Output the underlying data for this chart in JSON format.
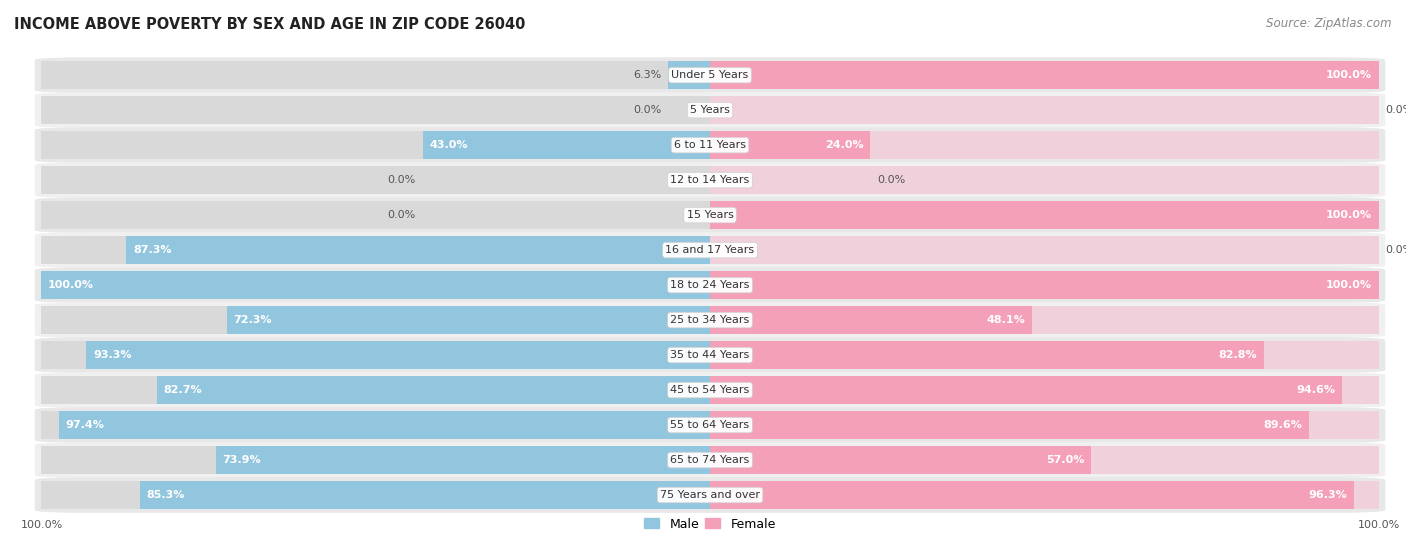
{
  "title": "INCOME ABOVE POVERTY BY SEX AND AGE IN ZIP CODE 26040",
  "source": "Source: ZipAtlas.com",
  "categories": [
    "Under 5 Years",
    "5 Years",
    "6 to 11 Years",
    "12 to 14 Years",
    "15 Years",
    "16 and 17 Years",
    "18 to 24 Years",
    "25 to 34 Years",
    "35 to 44 Years",
    "45 to 54 Years",
    "55 to 64 Years",
    "65 to 74 Years",
    "75 Years and over"
  ],
  "male_values": [
    6.3,
    0.0,
    43.0,
    0.0,
    0.0,
    87.3,
    100.0,
    72.3,
    93.3,
    82.7,
    97.4,
    73.9,
    85.3
  ],
  "female_values": [
    100.0,
    0.0,
    24.0,
    0.0,
    100.0,
    0.0,
    100.0,
    48.1,
    82.8,
    94.6,
    89.6,
    57.0,
    96.3
  ],
  "male_color": "#92C5DE",
  "female_color": "#F4A0B8",
  "row_colors": [
    "#e8e8e8",
    "#f0f0f0"
  ],
  "bg_color": "#ffffff",
  "label_bg": "#ffffff",
  "legend_male": "Male",
  "legend_female": "Female",
  "title_fontsize": 10.5,
  "source_fontsize": 8.5,
  "label_fontsize": 8,
  "cat_fontsize": 8,
  "tick_fontsize": 8
}
